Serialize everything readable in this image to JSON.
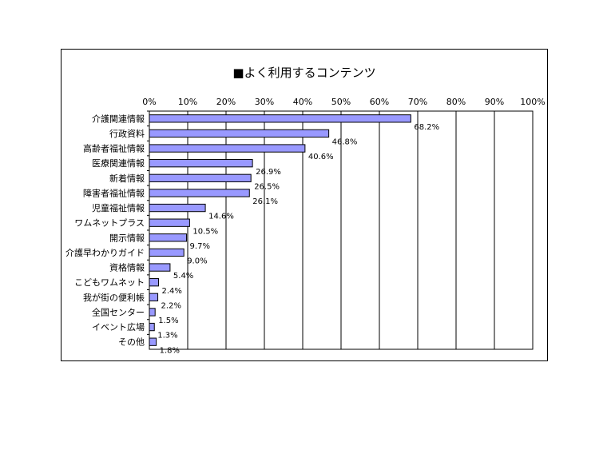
{
  "chart_data": {
    "type": "bar",
    "orientation": "horizontal",
    "title": "■よく利用するコンテンツ",
    "xlim": [
      0,
      100
    ],
    "x_ticks": [
      "0%",
      "10%",
      "20%",
      "30%",
      "40%",
      "50%",
      "60%",
      "70%",
      "80%",
      "90%",
      "100%"
    ],
    "grid": true,
    "categories": [
      "介護関連情報",
      "行政資料",
      "高齢者福祉情報",
      "医療関連情報",
      "新着情報",
      "障害者福祉情報",
      "児童福祉情報",
      "ワムネットプラス",
      "開示情報",
      "介護早わかりガイド",
      "資格情報",
      "こどもワムネット",
      "我が街の便利帳",
      "全国センター",
      "イベント広場",
      "その他"
    ],
    "values": [
      68.2,
      46.8,
      40.6,
      26.9,
      26.5,
      26.1,
      14.6,
      10.5,
      9.7,
      9.0,
      5.4,
      2.4,
      2.2,
      1.5,
      1.3,
      1.8
    ],
    "value_labels": [
      "68.2%",
      "46.8%",
      "40.6%",
      "26.9%",
      "26.5%",
      "26.1%",
      "14.6%",
      "10.5%",
      "9.7%",
      "9.0%",
      "5.4%",
      "2.4%",
      "2.2%",
      "1.5%",
      "1.3%",
      "1.8%"
    ],
    "bar_color": "#9999ff",
    "bar_stroke": "#000000"
  }
}
